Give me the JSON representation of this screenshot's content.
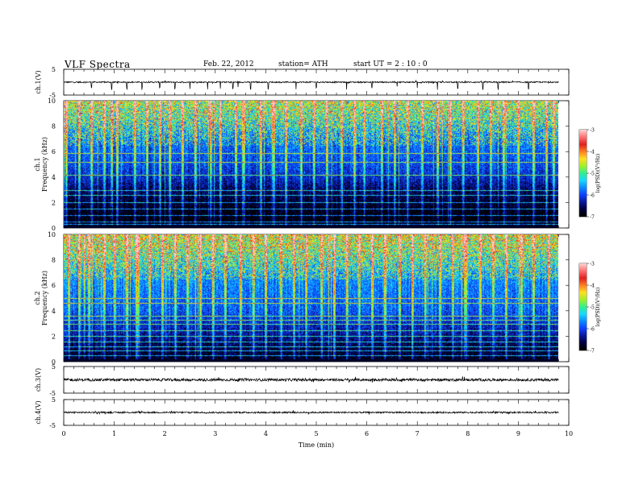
{
  "header": {
    "title": "VLF Spectra",
    "date": "Feb. 22, 2012",
    "station": "station= ATH",
    "start": "start UT = 2 : 10 : 0"
  },
  "colorscale": {
    "stops": [
      "#000000",
      "#000040",
      "#0a1a9a",
      "#1040ff",
      "#0a8cff",
      "#18d8ff",
      "#30f090",
      "#a0f028",
      "#ffe020",
      "#ff8020",
      "#e02020",
      "#ff7070",
      "#ffd0d0"
    ],
    "ticks": [
      "-3",
      "-4",
      "-5",
      "-6",
      "-7"
    ],
    "label": "log(PSD)(V²/Hz)"
  },
  "chart_data": [
    {
      "type": "line",
      "name": "ch1-waveform",
      "ylabel": "ch.1(V)",
      "ylim": [
        -5,
        5
      ],
      "yticks": [
        "5",
        "-5"
      ],
      "baseline": 0,
      "noise": 0.25,
      "spike_times_min": [
        0.55,
        0.95,
        1.25,
        1.55,
        1.9,
        2.2,
        2.5,
        2.85,
        3.1,
        3.35,
        3.45,
        3.7,
        4.05,
        4.6,
        5.0,
        5.6,
        6.1,
        6.6,
        7.0,
        7.4,
        7.8,
        8.3,
        8.6,
        9.2
      ],
      "spike_depth": 3.0
    },
    {
      "type": "heatmap",
      "name": "ch1-spectrogram",
      "ylabel": "ch.1 Frequency (kHz)",
      "xlim": [
        0,
        9.8
      ],
      "ylim": [
        0,
        10
      ],
      "yticks": [
        "10",
        "8",
        "6",
        "4",
        "2",
        "0"
      ],
      "zlim": [
        -7,
        -3
      ],
      "background_psd_by_freq_khz": [
        [
          0,
          -7.0
        ],
        [
          1,
          -7.0
        ],
        [
          2,
          -6.8
        ],
        [
          3,
          -6.6
        ],
        [
          4,
          -6.2
        ],
        [
          5,
          -6.0
        ],
        [
          6,
          -5.9
        ],
        [
          7,
          -5.8
        ],
        [
          8,
          -5.6
        ],
        [
          9,
          -5.4
        ],
        [
          10,
          -5.3
        ]
      ],
      "lines_khz": [
        0.3,
        0.5,
        1.0,
        1.5,
        2.0,
        2.6,
        3.0,
        4.2,
        5.2,
        5.9
      ],
      "sferic_times_min": [
        0.05,
        0.3,
        0.55,
        0.8,
        0.95,
        1.05,
        1.4,
        1.65,
        1.9,
        2.1,
        2.35,
        2.6,
        2.9,
        3.1,
        3.4,
        3.55,
        3.9,
        4.15,
        4.4,
        4.7,
        4.95,
        5.2,
        5.5,
        5.75,
        5.95,
        6.3,
        6.55,
        6.8,
        7.1,
        7.4,
        7.65,
        7.9,
        8.2,
        8.45,
        8.7,
        9.0,
        9.3,
        9.55,
        9.7
      ]
    },
    {
      "type": "heatmap",
      "name": "ch2-spectrogram",
      "ylabel": "ch.2 Frequency (kHz)",
      "xlim": [
        0,
        9.8
      ],
      "ylim": [
        0,
        10
      ],
      "yticks": [
        "10",
        "8",
        "6",
        "4",
        "2",
        "0"
      ],
      "zlim": [
        -7,
        -3
      ],
      "background_psd_by_freq_khz": [
        [
          0,
          -6.9
        ],
        [
          1,
          -6.7
        ],
        [
          2,
          -6.4
        ],
        [
          3,
          -6.2
        ],
        [
          4,
          -5.9
        ],
        [
          5,
          -5.8
        ],
        [
          6,
          -5.7
        ],
        [
          7,
          -5.6
        ],
        [
          8,
          -5.4
        ],
        [
          9,
          -5.2
        ],
        [
          10,
          -5.1
        ]
      ],
      "lines_khz": [
        0.5,
        0.9,
        1.2,
        1.6,
        2.0,
        2.5,
        3.0,
        3.3,
        3.6,
        4.6,
        5.0
      ],
      "sferic_times_min": [
        0.1,
        0.3,
        0.5,
        0.8,
        1.0,
        1.25,
        1.45,
        1.7,
        1.95,
        2.2,
        2.45,
        2.7,
        2.95,
        3.2,
        3.5,
        3.75,
        4.0,
        4.3,
        4.55,
        4.8,
        5.1,
        5.35,
        5.6,
        5.85,
        6.1,
        6.35,
        6.65,
        6.9,
        7.15,
        7.45,
        7.7,
        7.95,
        8.25,
        8.5,
        8.75,
        9.05,
        9.3,
        9.6
      ]
    },
    {
      "type": "line",
      "name": "ch3-waveform",
      "ylabel": "ch.3(V)",
      "ylim": [
        -5,
        5
      ],
      "yticks": [
        "5",
        "-5"
      ],
      "baseline": 0,
      "noise": 0.5,
      "spike_times_min": [],
      "spike_depth": 0
    },
    {
      "type": "line",
      "name": "ch4-waveform",
      "ylabel": "ch.4(V)",
      "ylim": [
        -5,
        5
      ],
      "yticks": [
        "5",
        "-5"
      ],
      "baseline": 0,
      "noise": 0.3,
      "spike_times_min": [],
      "spike_depth": 0
    }
  ],
  "xaxis": {
    "label": "Time (min)",
    "xlim": [
      0,
      10
    ],
    "ticks": [
      "0",
      "1",
      "2",
      "3",
      "4",
      "5",
      "6",
      "7",
      "8",
      "9",
      "10"
    ]
  }
}
